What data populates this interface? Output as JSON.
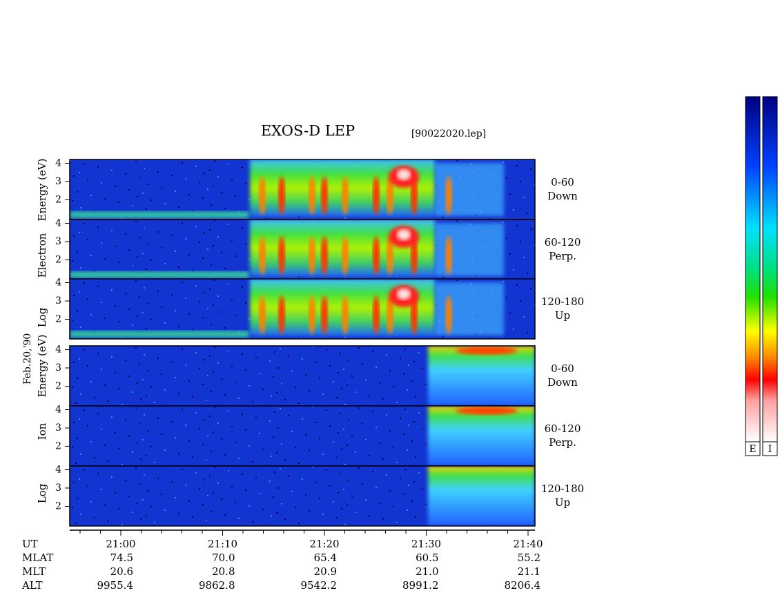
{
  "title": "EXOS-D LEP",
  "file": "[90022020.lep]",
  "date": "Feb.20,'90",
  "electron_axis": {
    "parts": [
      "Log",
      "Electron",
      "Energy (eV)"
    ]
  },
  "ion_axis": {
    "parts": [
      "Log",
      "Ion",
      "Energy (eV)"
    ]
  },
  "energy_ticks": [
    "2",
    "3",
    "4"
  ],
  "panels": [
    {
      "species": "electron",
      "range": "0-60",
      "direction": "Down"
    },
    {
      "species": "electron",
      "range": "60-120",
      "direction": "Perp."
    },
    {
      "species": "electron",
      "range": "120-180",
      "direction": "Up"
    },
    {
      "species": "ion",
      "range": "0-60",
      "direction": "Down"
    },
    {
      "species": "ion",
      "range": "60-120",
      "direction": "Perp."
    },
    {
      "species": "ion",
      "range": "120-180",
      "direction": "Up"
    }
  ],
  "time_axis": {
    "labels": [
      "21:00",
      "21:10",
      "21:20",
      "21:30",
      "21:40"
    ]
  },
  "ephemeris": {
    "rows": [
      {
        "name": "UT",
        "values": []
      },
      {
        "name": "MLAT",
        "values": [
          "74.5",
          "70.0",
          "65.4",
          "60.5",
          "55.2"
        ]
      },
      {
        "name": "MLT",
        "values": [
          "20.6",
          "20.8",
          "20.9",
          "21.0",
          "21.1"
        ]
      },
      {
        "name": "ALT",
        "values": [
          "9955.4",
          "9862.8",
          "9542.2",
          "8991.2",
          "8206.4"
        ]
      }
    ]
  },
  "colorbars": [
    "E",
    "I"
  ]
}
